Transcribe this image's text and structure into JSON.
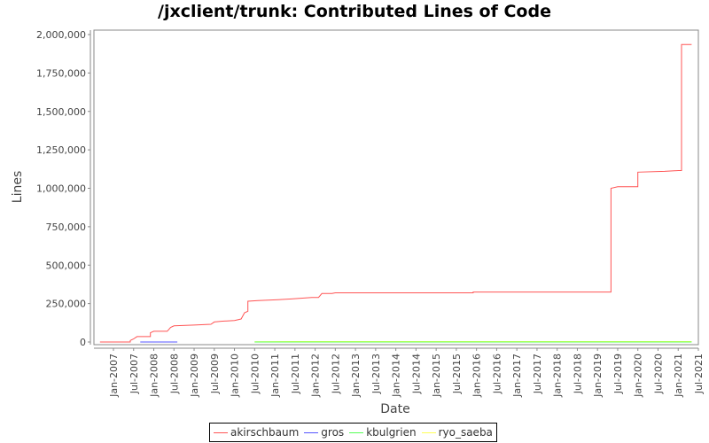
{
  "title": "/jxclient/trunk: Contributed Lines of Code",
  "chart_data": {
    "type": "line",
    "title": "/jxclient/trunk: Contributed Lines of Code",
    "xlabel": "Date",
    "ylabel": "Lines",
    "ylim": [
      0,
      2000000
    ],
    "y_ticks": [
      0,
      250000,
      500000,
      750000,
      1000000,
      1250000,
      1500000,
      1750000,
      2000000
    ],
    "y_tick_labels": [
      "0",
      "250,000",
      "500,000",
      "750,000",
      "1,000,000",
      "1,250,000",
      "1,500,000",
      "1,750,000",
      "2,000,000"
    ],
    "x_tick_labels": [
      "Jan-2007",
      "Jul-2007",
      "Jan-2008",
      "Jul-2008",
      "Jan-2009",
      "Jul-2009",
      "Jan-2010",
      "Jul-2010",
      "Jan-2011",
      "Jul-2011",
      "Jan-2012",
      "Jul-2012",
      "Jan-2013",
      "Jul-2013",
      "Jan-2014",
      "Jul-2014",
      "Jan-2015",
      "Jul-2015",
      "Jan-2016",
      "Jul-2016",
      "Jan-2017",
      "Jul-2017",
      "Jan-2018",
      "Jul-2018",
      "Jan-2019",
      "Jul-2019",
      "Jan-2020",
      "Jul-2020",
      "Jan-2021",
      "Jul-2021"
    ],
    "legend_position": "bottom",
    "grid": false,
    "series": [
      {
        "name": "akirschbaum",
        "color": "#ff5555",
        "points": [
          [
            "2006-09",
            0
          ],
          [
            "2007-06",
            0
          ],
          [
            "2007-06",
            10000
          ],
          [
            "2007-07",
            20000
          ],
          [
            "2007-08",
            35000
          ],
          [
            "2007-12",
            35000
          ],
          [
            "2007-12",
            60000
          ],
          [
            "2008-01",
            70000
          ],
          [
            "2008-05",
            70000
          ],
          [
            "2008-06",
            95000
          ],
          [
            "2008-07",
            105000
          ],
          [
            "2009-01",
            110000
          ],
          [
            "2009-06",
            115000
          ],
          [
            "2009-07",
            130000
          ],
          [
            "2009-09",
            135000
          ],
          [
            "2010-01",
            140000
          ],
          [
            "2010-03",
            150000
          ],
          [
            "2010-04",
            190000
          ],
          [
            "2010-05",
            200000
          ],
          [
            "2010-05",
            265000
          ],
          [
            "2010-08",
            270000
          ],
          [
            "2011-02",
            275000
          ],
          [
            "2011-06",
            280000
          ],
          [
            "2011-12",
            290000
          ],
          [
            "2012-02",
            290000
          ],
          [
            "2012-03",
            315000
          ],
          [
            "2012-06",
            315000
          ],
          [
            "2012-07",
            320000
          ],
          [
            "2015-12",
            320000
          ],
          [
            "2015-12",
            325000
          ],
          [
            "2019-05",
            325000
          ],
          [
            "2019-05",
            1000000
          ],
          [
            "2019-07",
            1010000
          ],
          [
            "2020-01",
            1010000
          ],
          [
            "2020-01",
            1105000
          ],
          [
            "2020-09",
            1110000
          ],
          [
            "2021-01",
            1115000
          ],
          [
            "2021-02",
            1115000
          ],
          [
            "2021-02",
            1935000
          ],
          [
            "2021-05",
            1935000
          ]
        ]
      },
      {
        "name": "gros",
        "color": "#5555ff",
        "points": [
          [
            "2007-09",
            0
          ],
          [
            "2008-08",
            0
          ]
        ]
      },
      {
        "name": "kbulgrien",
        "color": "#55ff55",
        "points": [
          [
            "2010-07",
            0
          ],
          [
            "2021-05",
            0
          ]
        ]
      },
      {
        "name": "ryo_saeba",
        "color": "#ffff55",
        "points": [
          [
            "2010-07",
            2000
          ],
          [
            "2011-07",
            3000
          ],
          [
            "2021-05",
            3000
          ]
        ]
      }
    ]
  },
  "legend": [
    {
      "label": "akirschbaum",
      "color": "#ff5555"
    },
    {
      "label": "gros",
      "color": "#5555ff"
    },
    {
      "label": "kbulgrien",
      "color": "#55ff55"
    },
    {
      "label": "ryo_saeba",
      "color": "#ffff55"
    }
  ]
}
